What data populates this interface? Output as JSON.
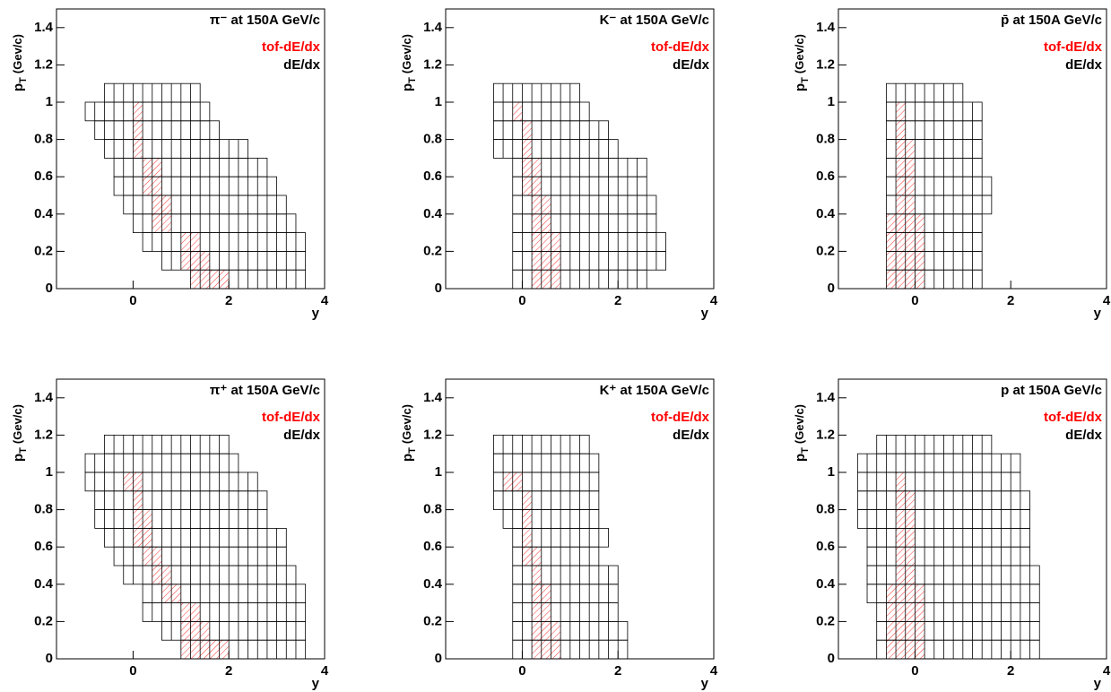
{
  "chart_data": [
    {
      "type": "bin-map",
      "title": "π⁻ at 150A GeV/c",
      "xlabel": "y",
      "ylabel": "p",
      "ylabel_sub": "T",
      "ylabel_unit": "(Gev/c)",
      "xlim": [
        -1.6,
        4
      ],
      "xticks": [
        0,
        2,
        4
      ],
      "ylim": [
        0,
        1.5
      ],
      "yticks": [
        0,
        0.2,
        0.4,
        0.6,
        0.8,
        1,
        1.2,
        1.4
      ],
      "pt_bins": [
        0,
        0.1,
        0.2,
        0.3,
        0.4,
        0.5,
        0.6,
        0.7,
        0.8,
        0.9,
        1.0,
        1.1
      ],
      "y_bin_width": 0.2,
      "series": [
        {
          "name": "tof-dE/dx",
          "color": "#ff0000",
          "y_min": [
            1.2,
            1.0,
            1.0,
            0.4,
            0.4,
            0.2,
            0.2,
            0.0,
            0.0,
            0.0,
            null
          ],
          "y_max": [
            2.0,
            1.6,
            1.4,
            0.8,
            0.8,
            0.6,
            0.6,
            0.2,
            0.2,
            0.2,
            null
          ]
        },
        {
          "name": "dE/dx",
          "color": "#000000",
          "y_min": [
            1.2,
            0.6,
            0.2,
            0.0,
            -0.2,
            -0.4,
            -0.4,
            -0.6,
            -0.8,
            -1.0,
            -0.6
          ],
          "y_max": [
            3.6,
            3.6,
            3.6,
            3.4,
            3.2,
            3.0,
            2.8,
            2.4,
            1.8,
            1.6,
            1.4
          ]
        }
      ]
    },
    {
      "type": "bin-map",
      "title": "K⁻ at 150A GeV/c",
      "xlabel": "y",
      "ylabel": "p",
      "ylabel_sub": "T",
      "ylabel_unit": "(Gev/c)",
      "xlim": [
        -1.6,
        4
      ],
      "xticks": [
        0,
        2,
        4
      ],
      "ylim": [
        0,
        1.5
      ],
      "yticks": [
        0,
        0.2,
        0.4,
        0.6,
        0.8,
        1,
        1.2,
        1.4
      ],
      "pt_bins": [
        0,
        0.1,
        0.2,
        0.3,
        0.4,
        0.5,
        0.6,
        0.7,
        0.8,
        0.9,
        1.0,
        1.1
      ],
      "y_bin_width": 0.2,
      "series": [
        {
          "name": "tof-dE/dx",
          "color": "#ff0000",
          "y_min": [
            0.2,
            0.2,
            0.2,
            0.2,
            0.2,
            0,
            0,
            0,
            0,
            -0.2,
            null
          ],
          "y_max": [
            0.8,
            0.8,
            0.8,
            0.6,
            0.6,
            0.4,
            0.4,
            0.2,
            0.2,
            0,
            null
          ]
        },
        {
          "name": "dE/dx",
          "color": "#000000",
          "y_min": [
            -0.2,
            -0.2,
            -0.2,
            -0.2,
            -0.2,
            -0.2,
            -0.2,
            -0.6,
            -0.6,
            -0.6,
            -0.6
          ],
          "y_max": [
            2.6,
            3.0,
            3.0,
            2.8,
            2.8,
            2.6,
            2.6,
            2.0,
            1.8,
            1.4,
            1.2
          ]
        }
      ]
    },
    {
      "type": "bin-map",
      "title": "p̄ at 150A GeV/c",
      "xlabel": "y",
      "ylabel": "p",
      "ylabel_sub": "T",
      "ylabel_unit": "(Gev/c)",
      "xlim": [
        -1.6,
        4
      ],
      "xticks": [
        0,
        2,
        4
      ],
      "ylim": [
        0,
        1.5
      ],
      "yticks": [
        0,
        0.2,
        0.4,
        0.6,
        0.8,
        1,
        1.2,
        1.4
      ],
      "pt_bins": [
        0,
        0.1,
        0.2,
        0.3,
        0.4,
        0.5,
        0.6,
        0.7,
        0.8,
        0.9,
        1.0,
        1.1
      ],
      "y_bin_width": 0.2,
      "series": [
        {
          "name": "tof-dE/dx",
          "color": "#ff0000",
          "y_min": [
            -0.6,
            -0.6,
            -0.6,
            -0.6,
            -0.4,
            -0.4,
            -0.4,
            -0.4,
            -0.4,
            -0.4,
            null
          ],
          "y_max": [
            0.2,
            0.2,
            0.2,
            0.2,
            0,
            0,
            0,
            0,
            -0.2,
            -0.2,
            null
          ]
        },
        {
          "name": "dE/dx",
          "color": "#000000",
          "y_min": [
            -0.6,
            -0.6,
            -0.6,
            -0.6,
            -0.6,
            -0.6,
            -0.6,
            -0.6,
            -0.6,
            -0.6,
            -0.6
          ],
          "y_max": [
            1.4,
            1.4,
            1.4,
            1.4,
            1.6,
            1.6,
            1.4,
            1.4,
            1.4,
            1.4,
            1.0
          ]
        }
      ]
    },
    {
      "type": "bin-map",
      "title": "π⁺ at 150A GeV/c",
      "xlabel": "y",
      "ylabel": "p",
      "ylabel_sub": "T",
      "ylabel_unit": "(Gev/c)",
      "xlim": [
        -1.6,
        4
      ],
      "xticks": [
        0,
        2,
        4
      ],
      "ylim": [
        0,
        1.5
      ],
      "yticks": [
        0,
        0.2,
        0.4,
        0.6,
        0.8,
        1,
        1.2,
        1.4
      ],
      "pt_bins": [
        0,
        0.1,
        0.2,
        0.3,
        0.4,
        0.5,
        0.6,
        0.7,
        0.8,
        0.9,
        1.0,
        1.1,
        1.2
      ],
      "y_bin_width": 0.2,
      "series": [
        {
          "name": "tof-dE/dx",
          "color": "#ff0000",
          "y_min": [
            1.0,
            1.0,
            1.0,
            0.6,
            0.4,
            0.2,
            0,
            0,
            0,
            -0.2,
            null,
            null
          ],
          "y_max": [
            2.0,
            1.6,
            1.4,
            1.0,
            0.8,
            0.6,
            0.4,
            0.4,
            0.2,
            0.2,
            null,
            null
          ]
        },
        {
          "name": "dE/dx",
          "color": "#000000",
          "y_min": [
            1.0,
            0.6,
            0.2,
            0.2,
            -0.2,
            -0.4,
            -0.6,
            -0.8,
            -0.8,
            -1.0,
            -1.0,
            -0.6
          ],
          "y_max": [
            3.6,
            3.6,
            3.6,
            3.6,
            3.4,
            3.2,
            3.2,
            2.8,
            2.8,
            2.6,
            2.2,
            2.0
          ]
        }
      ]
    },
    {
      "type": "bin-map",
      "title": "K⁺ at 150A GeV/c",
      "xlabel": "y",
      "ylabel": "p",
      "ylabel_sub": "T",
      "ylabel_unit": "(Gev/c)",
      "xlim": [
        -1.6,
        4
      ],
      "xticks": [
        0,
        2,
        4
      ],
      "ylim": [
        0,
        1.5
      ],
      "yticks": [
        0,
        0.2,
        0.4,
        0.6,
        0.8,
        1,
        1.2,
        1.4
      ],
      "pt_bins": [
        0,
        0.1,
        0.2,
        0.3,
        0.4,
        0.5,
        0.6,
        0.7,
        0.8,
        0.9,
        1.0,
        1.1,
        1.2
      ],
      "y_bin_width": 0.2,
      "series": [
        {
          "name": "tof-dE/dx",
          "color": "#ff0000",
          "y_min": [
            0.2,
            0.2,
            0.2,
            0.2,
            0.2,
            0,
            0,
            0,
            0,
            -0.4,
            null,
            null
          ],
          "y_max": [
            0.8,
            0.8,
            0.6,
            0.6,
            0.4,
            0.4,
            0.2,
            0.2,
            0.2,
            0,
            null,
            null
          ]
        },
        {
          "name": "dE/dx",
          "color": "#000000",
          "y_min": [
            -0.2,
            -0.2,
            -0.2,
            -0.2,
            -0.2,
            -0.2,
            -0.2,
            -0.4,
            -0.6,
            -0.6,
            -0.6,
            -0.6
          ],
          "y_max": [
            2.2,
            2.2,
            2.0,
            2.0,
            2.0,
            1.6,
            1.8,
            1.6,
            1.6,
            1.6,
            1.6,
            1.4
          ]
        }
      ]
    },
    {
      "type": "bin-map",
      "title": "p at 150A GeV/c",
      "xlabel": "y",
      "ylabel": "p",
      "ylabel_sub": "T",
      "ylabel_unit": "(Gev/c)",
      "xlim": [
        -1.6,
        4
      ],
      "xticks": [
        0,
        2,
        4
      ],
      "ylim": [
        0,
        1.5
      ],
      "yticks": [
        0,
        0.2,
        0.4,
        0.6,
        0.8,
        1,
        1.2,
        1.4
      ],
      "pt_bins": [
        0,
        0.1,
        0.2,
        0.3,
        0.4,
        0.5,
        0.6,
        0.7,
        0.8,
        0.9,
        1.0,
        1.1,
        1.2
      ],
      "y_bin_width": 0.2,
      "series": [
        {
          "name": "tof-dE/dx",
          "color": "#ff0000",
          "y_min": [
            -0.6,
            -0.6,
            -0.6,
            -0.6,
            -0.4,
            -0.4,
            -0.4,
            -0.4,
            -0.4,
            -0.4,
            null,
            null
          ],
          "y_max": [
            0.2,
            0.2,
            0.2,
            0.2,
            0,
            0,
            0,
            0,
            0,
            -0.2,
            null,
            null
          ]
        },
        {
          "name": "dE/dx",
          "color": "#000000",
          "y_min": [
            -0.8,
            -0.8,
            -0.8,
            -1.0,
            -1.0,
            -1.0,
            -1.0,
            -1.2,
            -1.2,
            -1.2,
            -1.2,
            -0.8
          ],
          "y_max": [
            2.6,
            2.6,
            2.6,
            2.6,
            2.6,
            2.4,
            2.4,
            2.4,
            2.4,
            2.2,
            2.2,
            1.6
          ]
        }
      ]
    }
  ]
}
